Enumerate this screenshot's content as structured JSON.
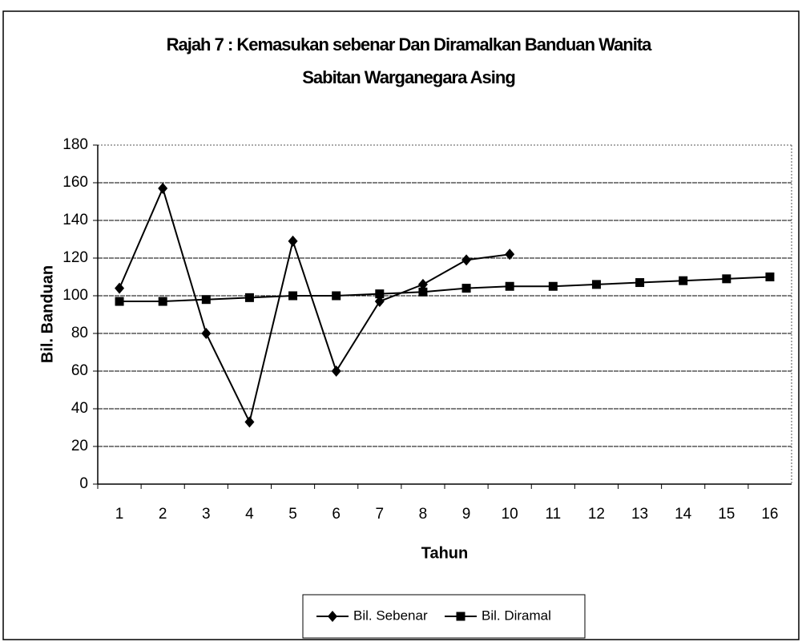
{
  "chart_data": {
    "type": "line",
    "title": [
      "Rajah 7 : Kemasukan sebenar Dan Diramalkan Banduan Wanita",
      "Sabitan Warganegara Asing"
    ],
    "x_label": "Tahun",
    "y_label": "Bil. Banduan",
    "categories": [
      "1",
      "2",
      "3",
      "4",
      "5",
      "6",
      "7",
      "8",
      "9",
      "10",
      "11",
      "12",
      "13",
      "14",
      "15",
      "16"
    ],
    "series": [
      {
        "name": "Bil. Sebenar",
        "color": "#000000",
        "marker": "diamond",
        "values": [
          104,
          157,
          80,
          33,
          129,
          60,
          97,
          106,
          119,
          122,
          null,
          null,
          null,
          null,
          null,
          null
        ]
      },
      {
        "name": "Bil. Diramal",
        "color": "#000000",
        "marker": "square",
        "values": [
          97,
          97,
          98,
          99,
          100,
          100,
          101,
          102,
          104,
          105,
          105,
          106,
          107,
          108,
          109,
          110
        ]
      }
    ],
    "ylim": [
      0,
      180
    ],
    "yticks": [
      0,
      20,
      40,
      60,
      80,
      100,
      120,
      140,
      160,
      180
    ],
    "grid": true,
    "legend": "bottom"
  }
}
